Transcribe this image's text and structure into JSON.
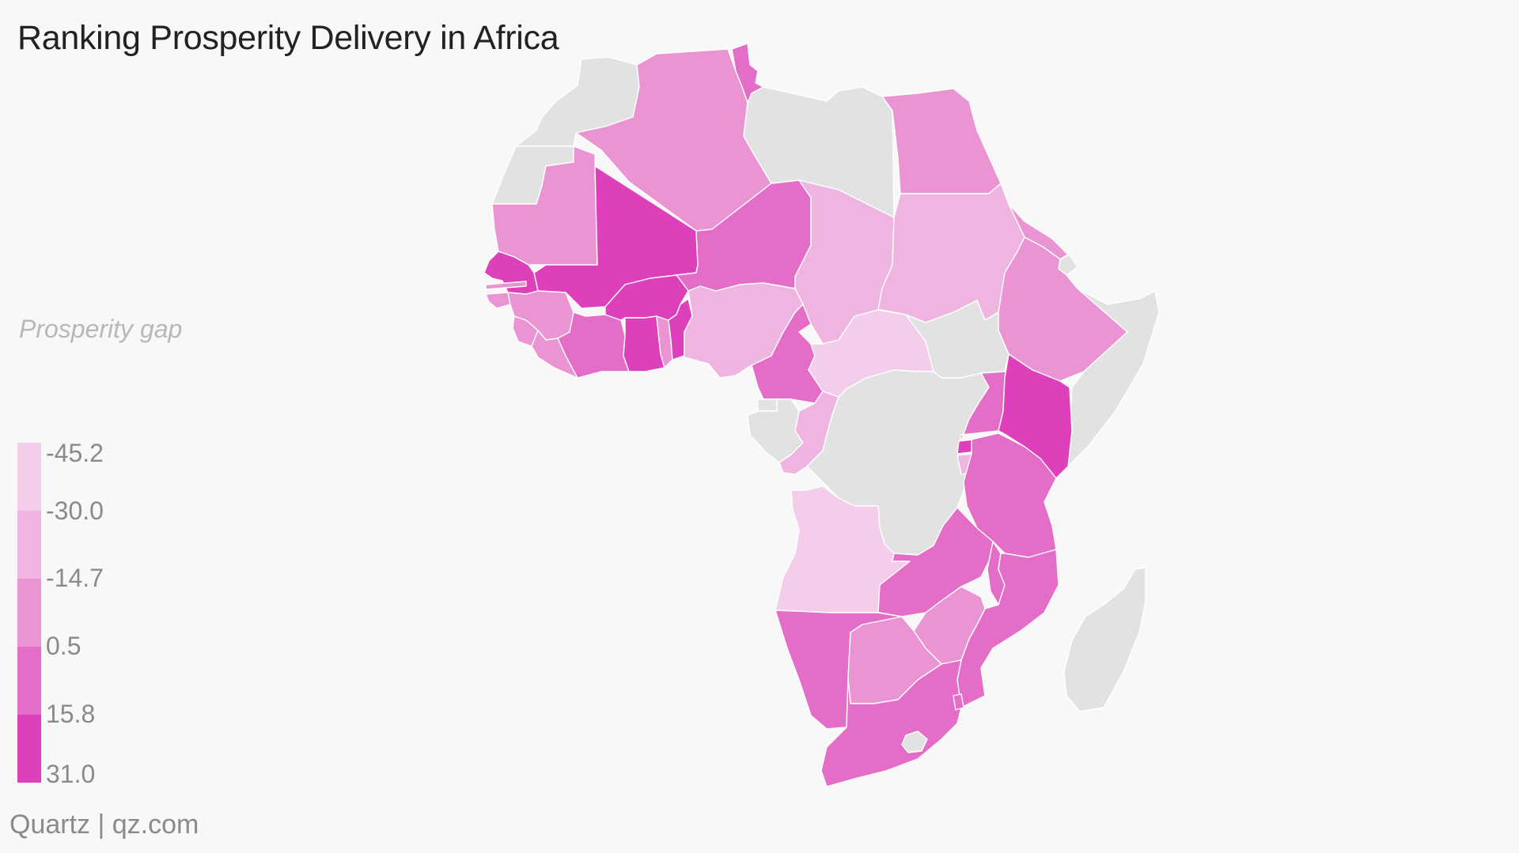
{
  "title": "Ranking Prosperity Delivery in Africa",
  "legend": {
    "title": "Prosperity gap",
    "labels": [
      "-45.2",
      "-30.0",
      "-14.7",
      "0.5",
      "15.8",
      "31.0"
    ],
    "colors": [
      "#f4cdeb",
      "#efb4e0",
      "#ea94d4",
      "#e46dc8",
      "#de3fba"
    ]
  },
  "credit": "Quartz | qz.com",
  "colors": {
    "nodata": "#e2e2e2",
    "background": "#f8f8f8"
  },
  "countries": [
    {
      "name": "Morocco",
      "bin": null
    },
    {
      "name": "Western Sahara",
      "bin": null
    },
    {
      "name": "Algeria",
      "bin": 2
    },
    {
      "name": "Tunisia",
      "bin": 3
    },
    {
      "name": "Libya",
      "bin": null
    },
    {
      "name": "Egypt",
      "bin": 2
    },
    {
      "name": "Mauritania",
      "bin": 2
    },
    {
      "name": "Mali",
      "bin": 4
    },
    {
      "name": "Niger",
      "bin": 3
    },
    {
      "name": "Chad",
      "bin": 1
    },
    {
      "name": "Sudan",
      "bin": 1
    },
    {
      "name": "Eritrea",
      "bin": 2
    },
    {
      "name": "Djibouti",
      "bin": null
    },
    {
      "name": "Ethiopia",
      "bin": 2
    },
    {
      "name": "Somalia",
      "bin": null
    },
    {
      "name": "Senegal",
      "bin": 4
    },
    {
      "name": "Gambia",
      "bin": 2
    },
    {
      "name": "Guinea-Bissau",
      "bin": 2
    },
    {
      "name": "Guinea",
      "bin": 2
    },
    {
      "name": "Sierra Leone",
      "bin": 2
    },
    {
      "name": "Liberia",
      "bin": 2
    },
    {
      "name": "Cote d'Ivoire",
      "bin": 3
    },
    {
      "name": "Burkina Faso",
      "bin": 4
    },
    {
      "name": "Ghana",
      "bin": 4
    },
    {
      "name": "Togo",
      "bin": 2
    },
    {
      "name": "Benin",
      "bin": 4
    },
    {
      "name": "Nigeria",
      "bin": 1
    },
    {
      "name": "Cameroon",
      "bin": 3
    },
    {
      "name": "Central African Republic",
      "bin": 0
    },
    {
      "name": "South Sudan",
      "bin": null
    },
    {
      "name": "Equatorial Guinea",
      "bin": null
    },
    {
      "name": "Gabon",
      "bin": null
    },
    {
      "name": "Republic of Congo",
      "bin": 1
    },
    {
      "name": "DR Congo",
      "bin": null
    },
    {
      "name": "Uganda",
      "bin": 3
    },
    {
      "name": "Kenya",
      "bin": 4
    },
    {
      "name": "Rwanda",
      "bin": 4
    },
    {
      "name": "Burundi",
      "bin": 1
    },
    {
      "name": "Tanzania",
      "bin": 3
    },
    {
      "name": "Angola",
      "bin": 0
    },
    {
      "name": "Zambia",
      "bin": 3
    },
    {
      "name": "Malawi",
      "bin": 3
    },
    {
      "name": "Mozambique",
      "bin": 3
    },
    {
      "name": "Zimbabwe",
      "bin": 2
    },
    {
      "name": "Namibia",
      "bin": 3
    },
    {
      "name": "Botswana",
      "bin": 2
    },
    {
      "name": "South Africa",
      "bin": 3
    },
    {
      "name": "Lesotho",
      "bin": null
    },
    {
      "name": "Swaziland",
      "bin": 3
    },
    {
      "name": "Madagascar",
      "bin": null
    }
  ]
}
